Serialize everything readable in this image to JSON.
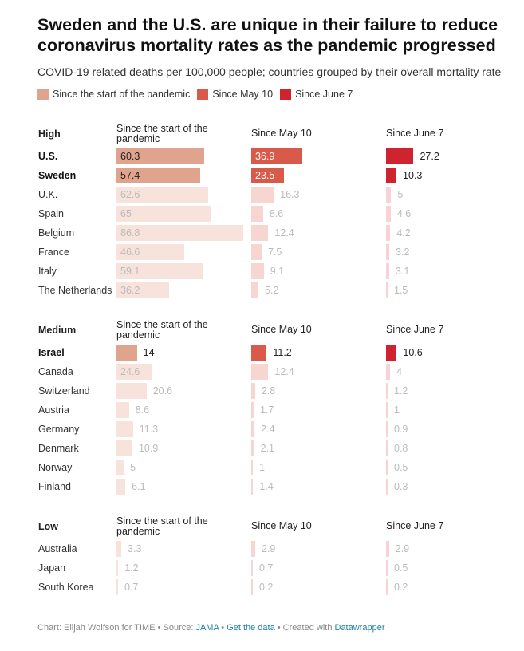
{
  "title": "Sweden and the U.S. are unique in their failure to reduce coronavirus mortality rates as the pandemic progressed",
  "subtitle": "COVID-19 related deaths per 100,000 people; countries grouped by their overall mortality rate",
  "colors": {
    "start": "#e0a48e",
    "start_light": "#f7e2dc",
    "may": "#d9594a",
    "may_light": "#f7d5d1",
    "june": "#cf2430",
    "june_light": "#f7d3d5"
  },
  "chart_data": {
    "type": "bar",
    "legend": [
      "Since the start of the pandemic",
      "Since May 10",
      "Since June 7"
    ],
    "columns": [
      "Since the start of the pandemic",
      "Since May 10",
      "Since June 7"
    ],
    "groups": [
      {
        "name": "High",
        "rows": [
          {
            "country": "U.S.",
            "highlight": true,
            "values": [
              60.3,
              36.9,
              27.2
            ]
          },
          {
            "country": "Sweden",
            "highlight": true,
            "values": [
              57.4,
              23.5,
              10.3
            ]
          },
          {
            "country": "U.K.",
            "highlight": false,
            "values": [
              62.6,
              16.3,
              5
            ]
          },
          {
            "country": "Spain",
            "highlight": false,
            "values": [
              65,
              8.6,
              4.6
            ]
          },
          {
            "country": "Belgium",
            "highlight": false,
            "values": [
              86.8,
              12.4,
              4.2
            ]
          },
          {
            "country": "France",
            "highlight": false,
            "values": [
              46.6,
              7.5,
              3.2
            ]
          },
          {
            "country": "Italy",
            "highlight": false,
            "values": [
              59.1,
              9.1,
              3.1
            ]
          },
          {
            "country": "The Netherlands",
            "highlight": false,
            "values": [
              36.2,
              5.2,
              1.5
            ]
          }
        ]
      },
      {
        "name": "Medium",
        "rows": [
          {
            "country": "Israel",
            "highlight": true,
            "values": [
              14,
              11.2,
              10.6
            ]
          },
          {
            "country": "Canada",
            "highlight": false,
            "values": [
              24.6,
              12.4,
              4
            ]
          },
          {
            "country": "Switzerland",
            "highlight": false,
            "values": [
              20.6,
              2.8,
              1.2
            ]
          },
          {
            "country": "Austria",
            "highlight": false,
            "values": [
              8.6,
              1.7,
              1
            ]
          },
          {
            "country": "Germany",
            "highlight": false,
            "values": [
              11.3,
              2.4,
              0.9
            ]
          },
          {
            "country": "Denmark",
            "highlight": false,
            "values": [
              10.9,
              2.1,
              0.8
            ]
          },
          {
            "country": "Norway",
            "highlight": false,
            "values": [
              5,
              1,
              0.5
            ]
          },
          {
            "country": "Finland",
            "highlight": false,
            "values": [
              6.1,
              1.4,
              0.3
            ]
          }
        ]
      },
      {
        "name": "Low",
        "rows": [
          {
            "country": "Australia",
            "highlight": false,
            "values": [
              3.3,
              2.9,
              2.9
            ]
          },
          {
            "country": "Japan",
            "highlight": false,
            "values": [
              1.2,
              0.7,
              0.5
            ]
          },
          {
            "country": "South Korea",
            "highlight": false,
            "values": [
              0.7,
              0.2,
              0.2
            ]
          }
        ]
      }
    ]
  },
  "footer": {
    "prefix": "Chart: Elijah Wolfson for TIME • Source: ",
    "source_link": "JAMA",
    "sep1": " • ",
    "data_link": "Get the data",
    "sep2": " • Created with ",
    "tool_link": "Datawrapper"
  }
}
